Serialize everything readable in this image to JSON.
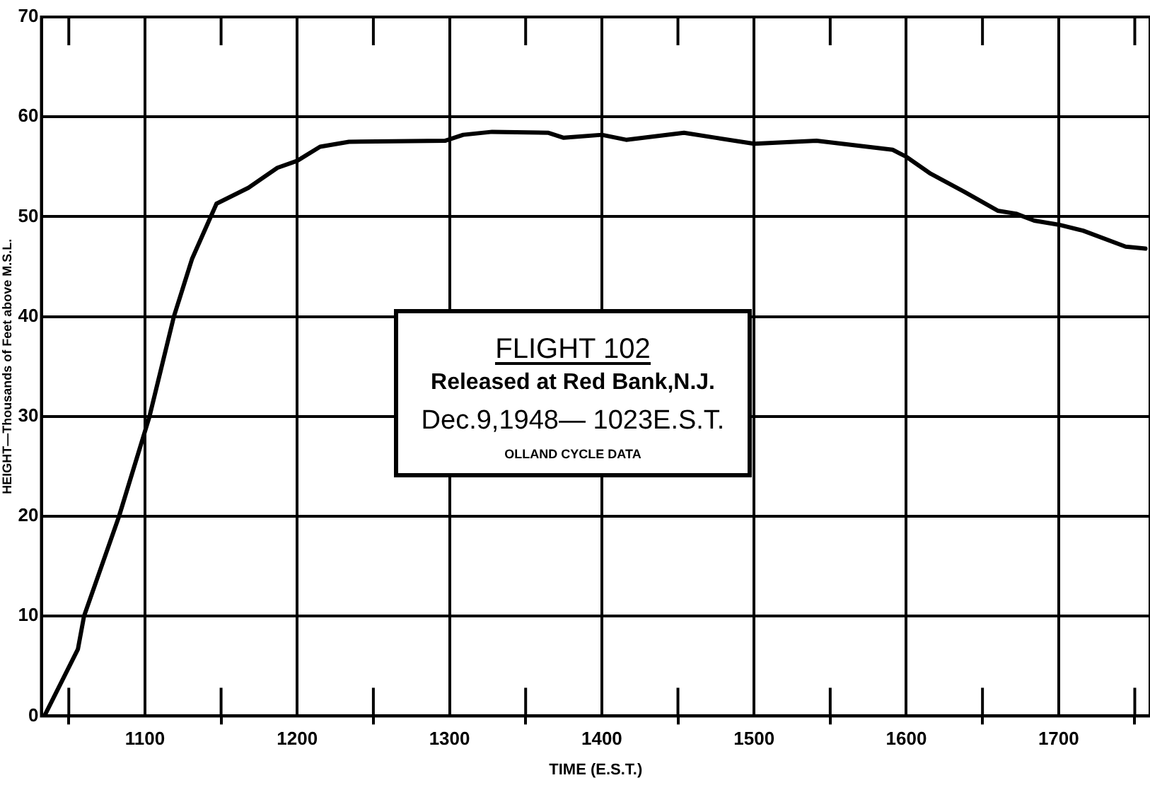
{
  "chart_data": {
    "type": "line",
    "xlabel": "TIME (E.S.T.)",
    "ylabel": "HEIGHT—Thousands of Feet above M.S.L.",
    "x": [
      1034,
      1056,
      1060,
      1083,
      1103,
      1119,
      1131,
      1147,
      1168,
      1187,
      1200,
      1215,
      1234,
      1297,
      1309,
      1328,
      1365,
      1375,
      1400,
      1416,
      1454,
      1475,
      1500,
      1541,
      1591,
      1600,
      1616,
      1638,
      1660,
      1672,
      1684,
      1700,
      1716,
      1744,
      1757
    ],
    "series": [
      {
        "color": "#000000",
        "values": [
          0,
          6.7,
          10,
          20,
          30,
          40,
          45.8,
          51.3,
          52.9,
          54.9,
          55.6,
          57.0,
          57.5,
          57.6,
          58.2,
          58.5,
          58.4,
          57.9,
          58.2,
          57.7,
          58.4,
          57.9,
          57.3,
          57.6,
          56.7,
          56.0,
          54.3,
          52.5,
          50.6,
          50.3,
          49.6,
          49.2,
          48.6,
          47.0,
          46.8
        ]
      }
    ],
    "xlim": [
      1032,
      1760
    ],
    "xticks": [
      {
        "value": 1050,
        "label": null
      },
      1100,
      {
        "value": 1150,
        "label": null
      },
      1200,
      {
        "value": 1250,
        "label": null
      },
      1300,
      {
        "value": 1350,
        "label": null
      },
      1400,
      {
        "value": 1450,
        "label": null
      },
      1500,
      {
        "value": 1550,
        "label": null
      },
      1600,
      {
        "value": 1650,
        "label": null
      },
      1700,
      {
        "value": 1750,
        "label": null
      }
    ],
    "ylim": [
      0,
      70
    ],
    "yticks": [
      0,
      10,
      20,
      30,
      40,
      50,
      60,
      70
    ],
    "grid": true,
    "legend": false,
    "marker": "none",
    "line_style": "solid",
    "annotations": [
      "FLIGHT 102",
      "Released at Red Bank,N.J.",
      "Dec.9,1948— 1023E.S.T.",
      "OLLAND CYCLE DATA"
    ]
  }
}
